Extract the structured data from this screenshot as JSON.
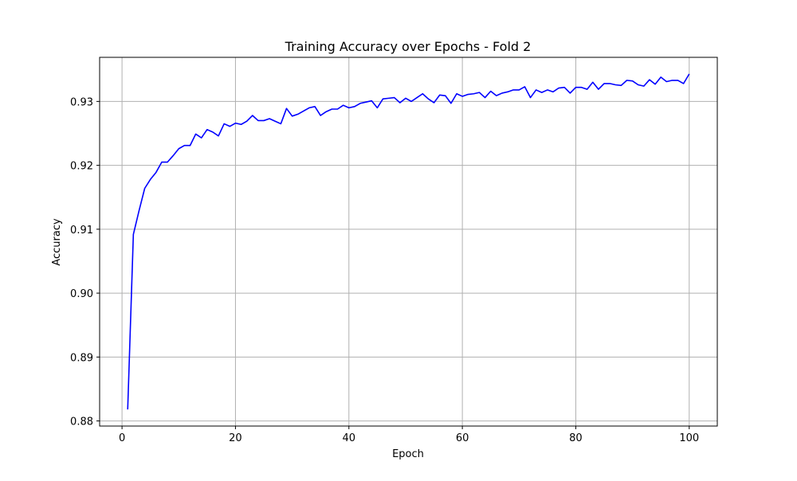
{
  "chart_data": {
    "type": "line",
    "title": "Training Accuracy over Epochs - Fold 2",
    "xlabel": "Epoch",
    "ylabel": "Accuracy",
    "xlim": [
      -3.95,
      104.95
    ],
    "ylim": [
      0.8792,
      0.9369
    ],
    "x_ticks": [
      0,
      20,
      40,
      60,
      80,
      100
    ],
    "y_ticks": [
      0.88,
      0.89,
      0.9,
      0.91,
      0.92,
      0.93
    ],
    "x_tick_labels": [
      "0",
      "20",
      "40",
      "60",
      "80",
      "100"
    ],
    "y_tick_labels": [
      "0.88",
      "0.89",
      "0.90",
      "0.91",
      "0.92",
      "0.93"
    ],
    "grid": true,
    "line_color": "#0000ff",
    "grid_color": "#b0b0b0",
    "series": [
      {
        "x": [
          1,
          2,
          3,
          4,
          5,
          6,
          7,
          8,
          9,
          10,
          11,
          12,
          13,
          14,
          15,
          16,
          17,
          18,
          19,
          20,
          21,
          22,
          23,
          24,
          25,
          26,
          27,
          28,
          29,
          30,
          31,
          32,
          33,
          34,
          35,
          36,
          37,
          38,
          39,
          40,
          41,
          42,
          43,
          44,
          45,
          46,
          47,
          48,
          49,
          50,
          51,
          52,
          53,
          54,
          55,
          56,
          57,
          58,
          59,
          60,
          61,
          62,
          63,
          64,
          65,
          66,
          67,
          68,
          69,
          70,
          71,
          72,
          73,
          74,
          75,
          76,
          77,
          78,
          79,
          80,
          81,
          82,
          83,
          84,
          85,
          86,
          87,
          88,
          89,
          90,
          91,
          92,
          93,
          94,
          95,
          96,
          97,
          98,
          99,
          100
        ],
        "values": [
          0.8818,
          0.9092,
          0.9129,
          0.9164,
          0.9178,
          0.9189,
          0.9205,
          0.9205,
          0.9215,
          0.9226,
          0.9231,
          0.9231,
          0.9249,
          0.9243,
          0.9256,
          0.9252,
          0.9246,
          0.9265,
          0.9261,
          0.9266,
          0.9264,
          0.9269,
          0.9278,
          0.927,
          0.927,
          0.9273,
          0.9269,
          0.9265,
          0.9289,
          0.9277,
          0.928,
          0.9285,
          0.929,
          0.9292,
          0.9278,
          0.9284,
          0.9288,
          0.9288,
          0.9294,
          0.929,
          0.9292,
          0.9297,
          0.9299,
          0.9301,
          0.929,
          0.9304,
          0.9305,
          0.9306,
          0.9298,
          0.9305,
          0.93,
          0.9306,
          0.9312,
          0.9304,
          0.9298,
          0.931,
          0.9309,
          0.9297,
          0.9312,
          0.9308,
          0.9311,
          0.9312,
          0.9314,
          0.9306,
          0.9316,
          0.9309,
          0.9313,
          0.9315,
          0.9318,
          0.9318,
          0.9323,
          0.9306,
          0.9318,
          0.9314,
          0.9318,
          0.9315,
          0.9321,
          0.9322,
          0.9313,
          0.9322,
          0.9322,
          0.9319,
          0.933,
          0.9319,
          0.9328,
          0.9328,
          0.9326,
          0.9325,
          0.9333,
          0.9332,
          0.9326,
          0.9324,
          0.9334,
          0.9327,
          0.9338,
          0.9331,
          0.9333,
          0.9333,
          0.9328,
          0.9343
        ]
      }
    ]
  }
}
